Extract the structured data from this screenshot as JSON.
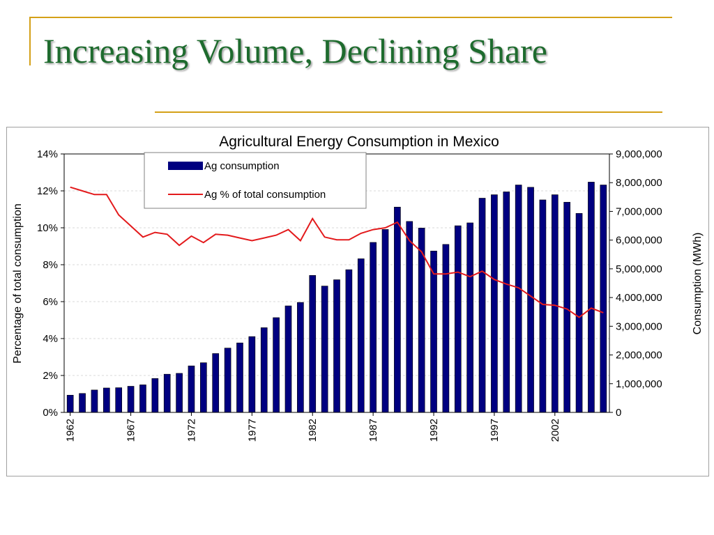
{
  "slide": {
    "title": "Increasing Volume, Declining Share"
  },
  "colors": {
    "title": "#1e6b2e",
    "accent_lines": "#d4a017",
    "bars": "#000080",
    "line": "#e31a1c"
  },
  "chart_data": {
    "type": "bar",
    "title": "Agricultural Energy Consumption in Mexico",
    "ylabel_left": "Percentage of total consumption",
    "ylabel_right": "Consumption (MWh)",
    "ylim_left": [
      0,
      14
    ],
    "ylim_right": [
      0,
      9000000
    ],
    "left_ticks": [
      "0%",
      "2%",
      "4%",
      "6%",
      "8%",
      "10%",
      "12%",
      "14%"
    ],
    "right_ticks": [
      "0",
      "1,000,000",
      "2,000,000",
      "3,000,000",
      "4,000,000",
      "5,000,000",
      "6,000,000",
      "7,000,000",
      "8,000,000",
      "9,000,000"
    ],
    "x_tick_labels": [
      "1962",
      "1967",
      "1972",
      "1977",
      "1982",
      "1987",
      "1992",
      "1997",
      "2002"
    ],
    "legend": {
      "placement": "top-left",
      "entries": [
        "Ag consumption",
        "Ag % of total consumption"
      ]
    },
    "grid": "horizontal dashed",
    "x": [
      1962,
      1963,
      1964,
      1965,
      1966,
      1967,
      1968,
      1969,
      1970,
      1971,
      1972,
      1973,
      1974,
      1975,
      1976,
      1977,
      1978,
      1979,
      1980,
      1981,
      1982,
      1983,
      1984,
      1985,
      1986,
      1987,
      1988,
      1989,
      1990,
      1991,
      1992,
      1993,
      1994,
      1995,
      1996,
      1997,
      1998,
      1999,
      2000,
      2001,
      2002,
      2003,
      2004,
      2005,
      2006
    ],
    "series": [
      {
        "name": "Ag consumption",
        "type": "bar",
        "axis": "right",
        "values": [
          600000,
          660000,
          780000,
          850000,
          860000,
          910000,
          960000,
          1180000,
          1330000,
          1360000,
          1620000,
          1730000,
          2050000,
          2240000,
          2420000,
          2640000,
          2950000,
          3300000,
          3710000,
          3830000,
          4770000,
          4400000,
          4620000,
          4970000,
          5350000,
          5920000,
          6370000,
          7150000,
          6650000,
          6420000,
          5620000,
          5850000,
          6500000,
          6600000,
          7460000,
          7580000,
          7680000,
          7920000,
          7840000,
          7400000,
          7580000,
          7320000,
          6930000,
          8020000,
          7920000
        ]
      },
      {
        "name": "Ag % of total consumption",
        "type": "line",
        "axis": "left",
        "values": [
          12.2,
          12.0,
          11.8,
          11.8,
          10.7,
          10.1,
          9.5,
          9.75,
          9.65,
          9.05,
          9.55,
          9.2,
          9.65,
          9.6,
          9.45,
          9.3,
          9.45,
          9.6,
          9.9,
          9.3,
          10.5,
          9.5,
          9.35,
          9.35,
          9.7,
          9.9,
          10.0,
          10.3,
          9.3,
          8.7,
          7.5,
          7.5,
          7.6,
          7.35,
          7.65,
          7.2,
          6.95,
          6.75,
          6.3,
          5.85,
          5.8,
          5.6,
          5.15,
          5.65,
          5.4
        ]
      }
    ]
  }
}
